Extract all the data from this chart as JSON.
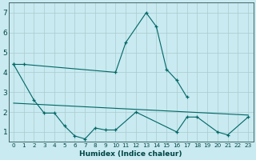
{
  "xlabel": "Humidex (Indice chaleur)",
  "bg_color": "#c8eaf0",
  "grid_color": "#aaccd0",
  "line_color": "#006666",
  "ylim": [
    0.5,
    7.5
  ],
  "xlim": [
    -0.5,
    23.5
  ],
  "series1_x": [
    0,
    1,
    10,
    11,
    13,
    14,
    15,
    16,
    17
  ],
  "series1_y": [
    4.4,
    4.4,
    4.0,
    5.5,
    7.0,
    6.3,
    4.15,
    3.6,
    2.75
  ],
  "series2_x": [
    0,
    2,
    3,
    4,
    5,
    6,
    7,
    8,
    9,
    10,
    12,
    16,
    17,
    18,
    20,
    21,
    23
  ],
  "series2_y": [
    4.4,
    2.6,
    1.95,
    1.95,
    1.3,
    0.8,
    0.65,
    1.2,
    1.1,
    1.1,
    2.0,
    1.0,
    1.75,
    1.75,
    1.0,
    0.85,
    1.75
  ],
  "series3_x": [
    0,
    23
  ],
  "series3_y": [
    2.45,
    1.85
  ],
  "yticks": [
    1,
    2,
    3,
    4,
    5,
    6,
    7
  ],
  "xticks": [
    0,
    1,
    2,
    3,
    4,
    5,
    6,
    7,
    8,
    9,
    10,
    11,
    12,
    13,
    14,
    15,
    16,
    17,
    18,
    19,
    20,
    21,
    22,
    23
  ],
  "xlabel_fontsize": 6.5,
  "ytick_fontsize": 6.5,
  "xtick_fontsize": 5.2
}
